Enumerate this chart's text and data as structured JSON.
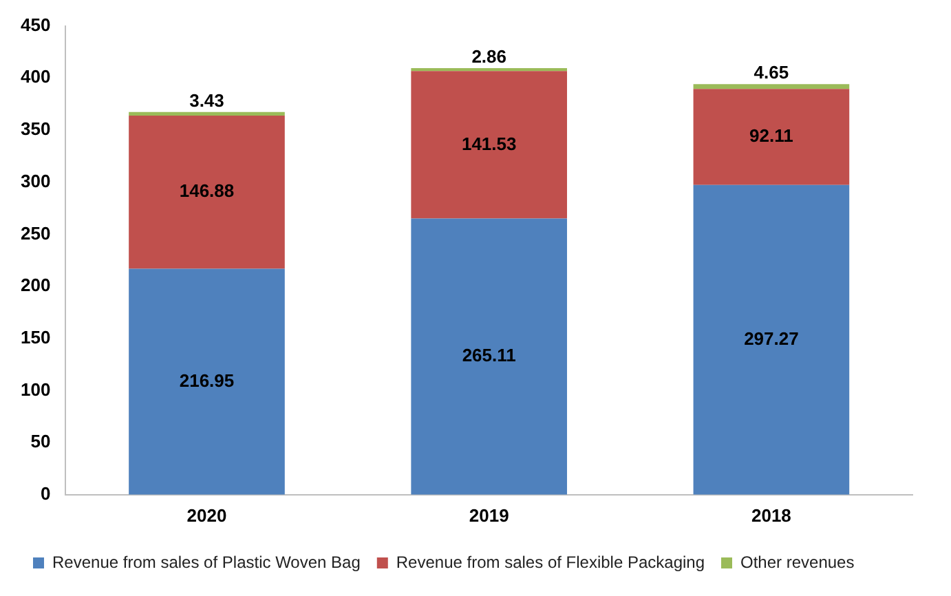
{
  "chart_data": {
    "type": "bar",
    "stacked": true,
    "categories": [
      "2020",
      "2019",
      "2018"
    ],
    "series": [
      {
        "name": "Revenue from sales of Plastic Woven Bag",
        "color": "#4f81bd",
        "values": [
          216.95,
          265.11,
          297.27
        ]
      },
      {
        "name": "Revenue from sales of Flexible Packaging",
        "color": "#c0504d",
        "values": [
          146.88,
          141.53,
          92.11
        ]
      },
      {
        "name": "Other revenues",
        "color": "#9bbb59",
        "values": [
          3.43,
          2.86,
          4.65
        ]
      }
    ],
    "ylim": [
      0,
      450
    ],
    "yticks": [
      0,
      50,
      100,
      150,
      200,
      250,
      300,
      350,
      400,
      450
    ],
    "grid": false,
    "legend": "bottom",
    "data_labels": true
  }
}
